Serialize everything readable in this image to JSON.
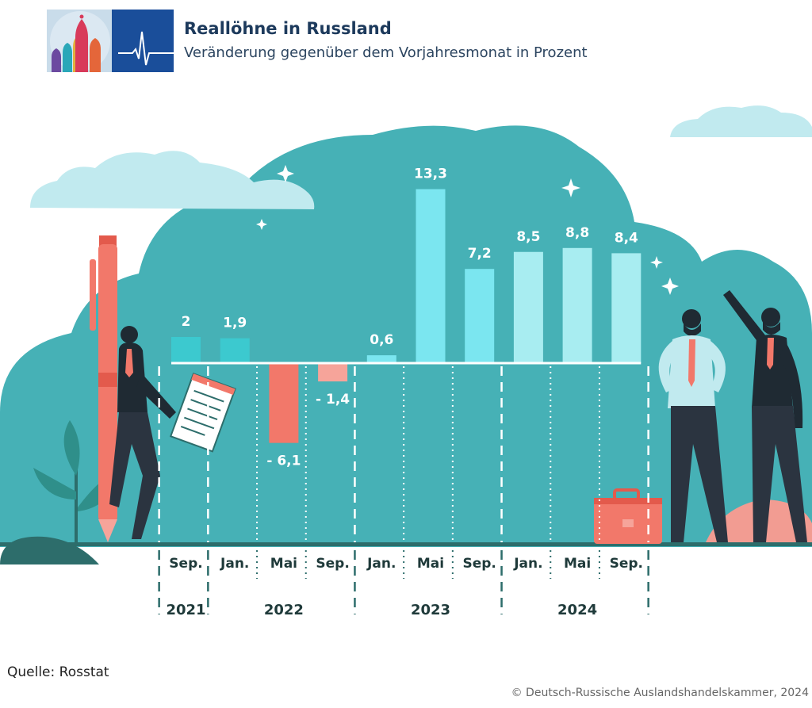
{
  "header": {
    "title": "Reallöhne in Russland",
    "subtitle": "Veränderung gegenüber dem Vorjahresmonat in Prozent"
  },
  "footer": {
    "source": "Quelle: Rosstat",
    "copyright": "© Deutsch-Russische Auslandshandelskammer, 2024"
  },
  "colors": {
    "background_blob": "#46b1b6",
    "cloud": "#c1eaef",
    "bar_2021": "#3cc9cf",
    "bar_2023": "#7be6f0",
    "bar_2024": "#a8edf1",
    "bar_negative": "#f2786a",
    "bar_negative_light": "#f6a49a",
    "ground": "#2d6d6b",
    "year_text": "#1f3a3a"
  },
  "chart_data": {
    "type": "bar",
    "categories": [
      "Sep.",
      "Jan.",
      "Mai",
      "Sep.",
      "Jan.",
      "Mai",
      "Sep.",
      "Jan.",
      "Mai",
      "Sep."
    ],
    "values": [
      2,
      1.9,
      -6.1,
      -1.4,
      0.6,
      13.3,
      7.2,
      8.5,
      8.8,
      8.4
    ],
    "value_labels": [
      "2",
      "1,9",
      "- 6,1",
      "- 1,4",
      "0,6",
      "13,3",
      "7,2",
      "8,5",
      "8,8",
      "8,4"
    ],
    "years": [
      {
        "label": "2021",
        "start": 0,
        "end": 0
      },
      {
        "label": "2022",
        "start": 1,
        "end": 3
      },
      {
        "label": "2023",
        "start": 4,
        "end": 6
      },
      {
        "label": "2024",
        "start": 7,
        "end": 9
      }
    ],
    "title": "Reallöhne in Russland",
    "subtitle": "Veränderung gegenüber dem Vorjahresmonat in Prozent",
    "xlabel": "",
    "ylabel": "",
    "ylim": [
      -6.1,
      13.3
    ],
    "grid": false,
    "legend": "none"
  }
}
